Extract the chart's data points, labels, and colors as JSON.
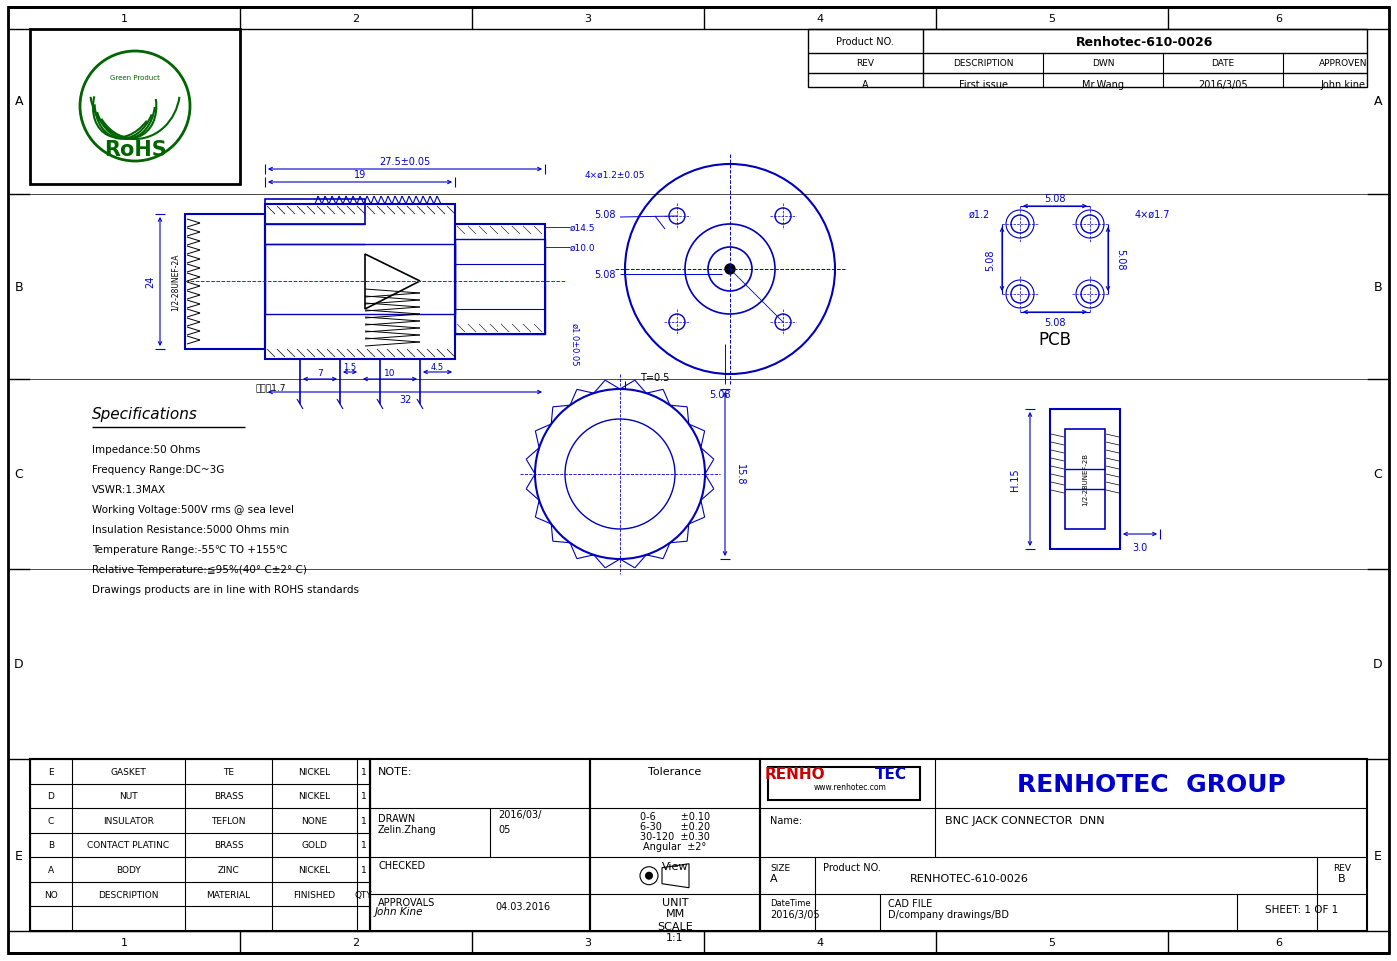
{
  "page_width": 13.97,
  "page_height": 9.62,
  "bg_color": "#ffffff",
  "lc": "#0000bb",
  "dc": "#0000cc",
  "black": "#000000",
  "rohs_green": "#006400",
  "renhotec_red": "#cc0000",
  "renhotec_blue": "#0000cc",
  "grid_numbers": [
    "1",
    "2",
    "3",
    "4",
    "5",
    "6"
  ],
  "grid_letters": [
    "A",
    "B",
    "C",
    "D",
    "E"
  ],
  "specs": [
    "Impedance:50 Ohms",
    "Frequency Range:DC~3G",
    "VSWR:1.3MAX",
    "Working Voltage:500V rms @ sea level",
    "Insulation Resistance:5000 Ohms min",
    "Temperature Range:-55℃ TO +155℃",
    "Relative Temperature:≦95%(40° C±2° C)",
    "Drawings products are in line with ROHS standards"
  ],
  "bom_rows": [
    [
      "E",
      "GASKET",
      "TE",
      "NICKEL",
      "1"
    ],
    [
      "D",
      "NUT",
      "BRASS",
      "NICKEL",
      "1"
    ],
    [
      "C",
      "INSULATOR",
      "TEFLON",
      "NONE",
      "1"
    ],
    [
      "B",
      "CONTACT PLATINC",
      "BRASS",
      "GOLD",
      "1"
    ],
    [
      "A",
      "BODY",
      "ZINC",
      "NICKEL",
      "1"
    ],
    [
      "NO",
      "DESCRIPTION",
      "MATERIAL",
      "FINISHED",
      "QTY"
    ]
  ],
  "tolerance_lines": [
    "0-6        ±0.10",
    "6-30      ±0.20",
    "30-120  ±0.30",
    "Angular  ±2°"
  ]
}
